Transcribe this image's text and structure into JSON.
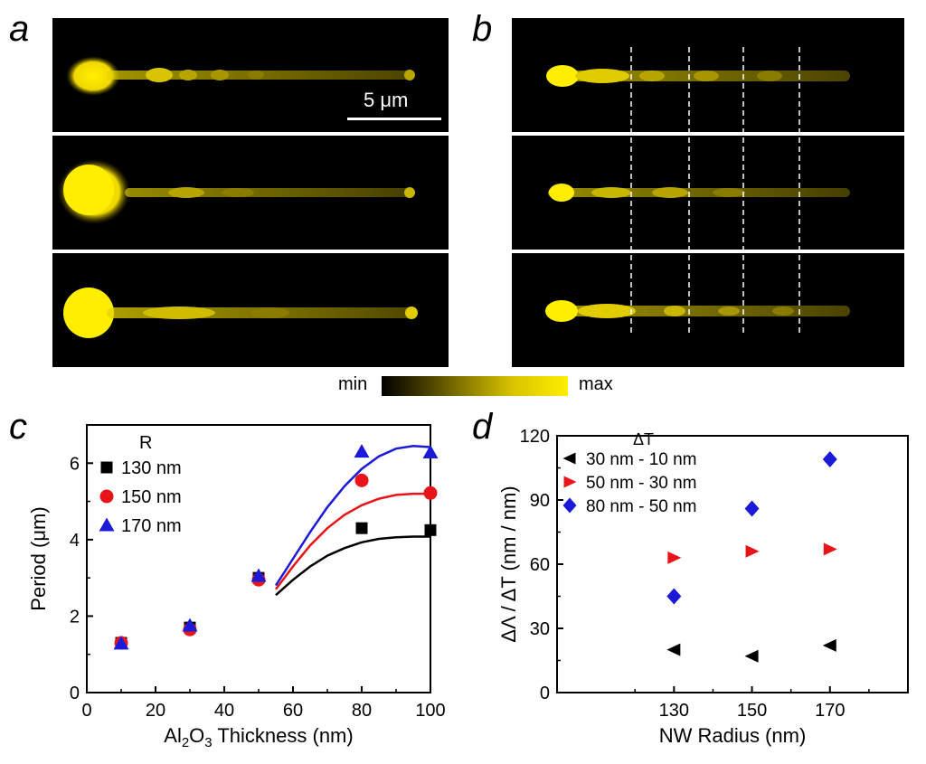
{
  "panel_labels": {
    "a": "a",
    "b": "b",
    "c": "c",
    "d": "d"
  },
  "scale_bar": "5 μm",
  "colorbar": {
    "min": "min",
    "max": "max"
  },
  "chart_data": [
    {
      "type": "scatter",
      "panel": "c",
      "xlabel_parts": [
        "Al",
        "2",
        "O",
        "3",
        " Thickness (nm)"
      ],
      "ylabel": "Period (μm)",
      "xlim": [
        0,
        100
      ],
      "ylim": [
        0,
        7
      ],
      "xticks": [
        "0",
        "20",
        "40",
        "60",
        "80",
        "100"
      ],
      "yticks": [
        "0",
        "2",
        "4",
        "6"
      ],
      "legend_title": "R",
      "series": [
        {
          "name": "130 nm",
          "marker": "square",
          "color": "#000000",
          "x": [
            10,
            30,
            50,
            80,
            100
          ],
          "y": [
            1.3,
            1.7,
            3.0,
            4.3,
            4.25
          ],
          "fit": {
            "x": [
              55,
              60,
              65,
              70,
              75,
              80,
              85,
              90,
              95,
              100
            ],
            "y": [
              2.55,
              2.95,
              3.3,
              3.58,
              3.78,
              3.93,
              4.02,
              4.06,
              4.08,
              4.08
            ]
          }
        },
        {
          "name": "150 nm",
          "marker": "circle",
          "color": "#e8141a",
          "x": [
            10,
            30,
            50,
            80,
            100
          ],
          "y": [
            1.3,
            1.65,
            2.95,
            5.55,
            5.22
          ],
          "fit": {
            "x": [
              55,
              60,
              65,
              70,
              75,
              80,
              85,
              90,
              95,
              100
            ],
            "y": [
              2.7,
              3.3,
              3.85,
              4.3,
              4.65,
              4.9,
              5.07,
              5.17,
              5.2,
              5.2
            ]
          }
        },
        {
          "name": "170 nm",
          "marker": "triangle",
          "color": "#1a1ad8",
          "x": [
            10,
            30,
            50,
            80,
            100
          ],
          "y": [
            1.28,
            1.75,
            3.05,
            6.3,
            6.28
          ],
          "fit": {
            "x": [
              55,
              60,
              65,
              70,
              75,
              80,
              85,
              90,
              95,
              100
            ],
            "y": [
              2.8,
              3.5,
              4.2,
              4.85,
              5.4,
              5.85,
              6.18,
              6.38,
              6.45,
              6.42
            ]
          }
        }
      ]
    },
    {
      "type": "scatter",
      "panel": "d",
      "xlabel": "NW Radius (nm)",
      "ylabel": "ΔΛ / ΔT (nm / nm)",
      "xlim": [
        100,
        190
      ],
      "ylim": [
        0,
        120
      ],
      "xticks": [
        "130",
        "150",
        "170"
      ],
      "yticks": [
        "0",
        "30",
        "60",
        "90",
        "120"
      ],
      "legend_title": "ΔT",
      "series": [
        {
          "name": "30 nm - 10 nm",
          "marker": "triangle-left",
          "color": "#000000",
          "x": [
            130,
            150,
            170
          ],
          "y": [
            20,
            17,
            22
          ]
        },
        {
          "name": "50 nm - 30 nm",
          "marker": "triangle-right",
          "color": "#e8141a",
          "x": [
            130,
            150,
            170
          ],
          "y": [
            63,
            66,
            67
          ]
        },
        {
          "name": "80 nm - 50 nm",
          "marker": "diamond",
          "color": "#1a1ad8",
          "x": [
            130,
            150,
            170
          ],
          "y": [
            45,
            86,
            109
          ]
        }
      ]
    }
  ]
}
